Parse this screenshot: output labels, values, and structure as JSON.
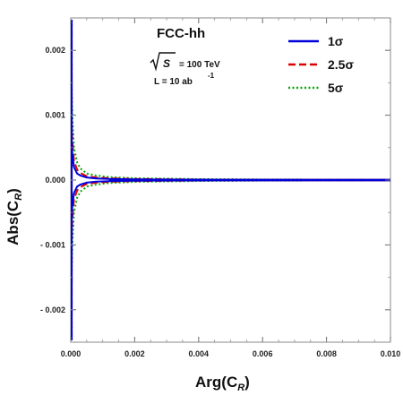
{
  "chart_data": {
    "type": "line",
    "xlabel": "Arg(C",
    "xlabel_sub": "R",
    "xlabel_close": ")",
    "ylabel": "Abs(C",
    "ylabel_sub": "R",
    "ylabel_close": ")",
    "xlim": [
      0,
      0.01
    ],
    "ylim": [
      -0.0025,
      0.0025
    ],
    "x_ticks": [
      0.0,
      0.002,
      0.004,
      0.006,
      0.008,
      0.01
    ],
    "x_tick_labels": [
      "0.000",
      "0.002",
      "0.004",
      "0.006",
      "0.008",
      "0.010"
    ],
    "y_ticks": [
      -0.002,
      -0.001,
      0.0,
      0.001,
      0.002
    ],
    "y_tick_labels": [
      "- 0.002",
      "- 0.001",
      "0.000",
      "0.001",
      "0.002"
    ],
    "grid": false,
    "legend_position": "top-right",
    "annotations": {
      "collider": "FCC-hh",
      "energy_sqrt": "S",
      "energy_value": "= 100 TeV",
      "lumi": "L = 10 ab",
      "lumi_exp": "-1"
    },
    "series": [
      {
        "name": "1σ",
        "color": "#0000dd",
        "style": "solid",
        "x": [
          3e-05,
          5e-05,
          0.0001,
          0.0002,
          0.0003,
          0.0005,
          0.0008,
          0.0012,
          0.002,
          0.004,
          0.006,
          0.008,
          0.01
        ],
        "y": [
          0.0006,
          0.0004,
          0.0002,
          0.0001,
          7e-05,
          4e-05,
          2.5e-05,
          1.7e-05,
          1e-05,
          5e-06,
          3e-06,
          2.5e-06,
          2e-06
        ]
      },
      {
        "name": "2.5σ",
        "color": "#dd0000",
        "style": "dashed",
        "x": [
          3e-05,
          5e-05,
          0.0001,
          0.0002,
          0.0003,
          0.0005,
          0.0008,
          0.0012,
          0.002,
          0.004,
          0.006,
          0.008,
          0.01
        ],
        "y": [
          0.0009,
          0.0006,
          0.0003,
          0.00016,
          0.00011,
          6e-05,
          4e-05,
          2.7e-05,
          1.6e-05,
          8e-06,
          5e-06,
          4e-06,
          3e-06
        ]
      },
      {
        "name": "5σ",
        "color": "#00aa00",
        "style": "dotted",
        "x": [
          3e-05,
          5e-05,
          0.0001,
          0.0002,
          0.0003,
          0.0005,
          0.0008,
          0.0012,
          0.002,
          0.004,
          0.006,
          0.008,
          0.01
        ],
        "y": [
          0.0014,
          0.001,
          0.0005,
          0.00027,
          0.00018,
          0.0001,
          7e-05,
          4.5e-05,
          2.8e-05,
          1.4e-05,
          9e-06,
          7e-06,
          5e-06
        ]
      }
    ]
  }
}
